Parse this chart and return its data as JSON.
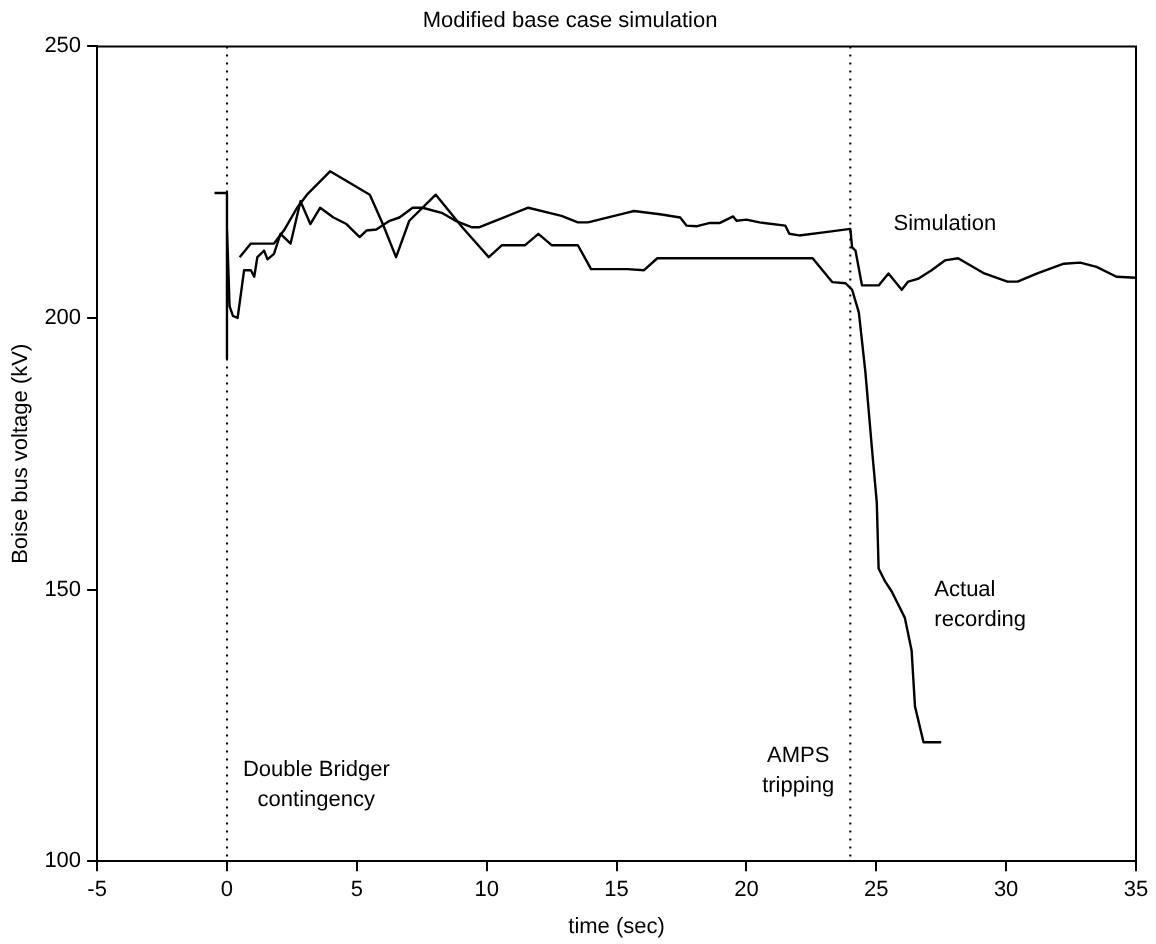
{
  "chart_data": {
    "type": "line",
    "title": "Modified base case simulation",
    "xlabel": "time (sec)",
    "ylabel": "Boise bus voltage (kV)",
    "xlim": [
      -5,
      35
    ],
    "xticks": [
      -5,
      0,
      5,
      10,
      15,
      20,
      25,
      30,
      35
    ],
    "ylim": [
      100,
      250
    ],
    "yticks": [
      100,
      150,
      200,
      250
    ],
    "grid": false,
    "legend": false,
    "marker": "none",
    "line_style": "solid",
    "series": [
      {
        "name": "Simulation",
        "color": "#000000",
        "x": [
          -0.48,
          0,
          0,
          0,
          0.1,
          0.23,
          0.41,
          0.66,
          0.92,
          1.05,
          1.17,
          1.43,
          1.56,
          1.81,
          2.06,
          2.32,
          2.45,
          2.83,
          3.21,
          3.59,
          4.1,
          4.6,
          5.11,
          5.37,
          5.75,
          6.26,
          6.64,
          7.15,
          7.53,
          8.3,
          8.8,
          9.44,
          9.7,
          10.33,
          11.6,
          12.88,
          13.51,
          13.9,
          15.42,
          15.67,
          16.67,
          17.45,
          17.7,
          18.1,
          18.6,
          18.98,
          19.49,
          19.62,
          20.0,
          20.5,
          21.5,
          21.65,
          22.03,
          23.05,
          24.0,
          24.07,
          24.2,
          24.45,
          25.09,
          25.47,
          25.98,
          26.23,
          26.6,
          27.13,
          27.64,
          28.15,
          29.16,
          30.05,
          30.44,
          31.2,
          32.22,
          32.85,
          33.48,
          34.25,
          35
        ],
        "values": [
          223,
          223,
          192.5,
          216.7,
          202.2,
          200.4,
          200.0,
          208.8,
          208.8,
          207.6,
          211.2,
          212.4,
          210.8,
          211.8,
          215.5,
          214.3,
          213.7,
          221.5,
          217.3,
          220.3,
          218.5,
          217.3,
          214.9,
          216.1,
          216.3,
          217.9,
          218.5,
          220.3,
          220.3,
          219.3,
          217.9,
          216.7,
          216.7,
          217.9,
          220.3,
          218.8,
          217.6,
          217.6,
          219.4,
          219.7,
          219.1,
          218.5,
          217.0,
          216.9,
          217.5,
          217.5,
          218.7,
          217.9,
          218.1,
          217.6,
          217.0,
          215.5,
          215.2,
          215.8,
          216.4,
          213.0,
          212.4,
          206.0,
          206.0,
          208.2,
          205.2,
          206.7,
          207.2,
          208.8,
          210.6,
          211.0,
          208.2,
          206.7,
          206.7,
          208.2,
          210.0,
          210.2,
          209.4,
          207.6,
          207.4
        ]
      },
      {
        "name": "Actual\nrecording",
        "color": "#000000",
        "x": [
          0.49,
          0.92,
          1.81,
          2.19,
          2.7,
          3.08,
          3.97,
          5.5,
          6.0,
          6.51,
          7.02,
          8.04,
          9.06,
          10.08,
          10.59,
          11.48,
          11.99,
          12.5,
          13.51,
          14.02,
          15.42,
          16.06,
          16.57,
          22.55,
          22.93,
          23.31,
          23.82,
          24.07,
          24.33,
          24.58,
          24.84,
          25.02,
          25.09,
          25.34,
          25.6,
          25.85,
          26.1,
          26.36,
          26.49,
          26.82,
          27.5
        ],
        "values": [
          211.2,
          213.7,
          213.7,
          216.1,
          220.3,
          222.7,
          227.0,
          222.7,
          217.3,
          211.2,
          217.9,
          222.7,
          216.7,
          211.2,
          213.4,
          213.4,
          215.5,
          213.4,
          213.4,
          209.0,
          209.0,
          208.8,
          211.0,
          211.0,
          208.8,
          206.6,
          206.4,
          205.2,
          201.0,
          190.1,
          175.6,
          166.0,
          153.9,
          151.5,
          149.6,
          147.2,
          144.8,
          138.8,
          128.5,
          121.9,
          121.9
        ]
      }
    ],
    "ref_lines": [
      {
        "axis": "x",
        "value": 0,
        "line_style": "dotted",
        "color": "#000000",
        "label": "Double Bridger\ncontingency"
      },
      {
        "axis": "x",
        "value": 24,
        "line_style": "dotted",
        "color": "#000000",
        "label": "AMPS\ntripping"
      }
    ]
  }
}
